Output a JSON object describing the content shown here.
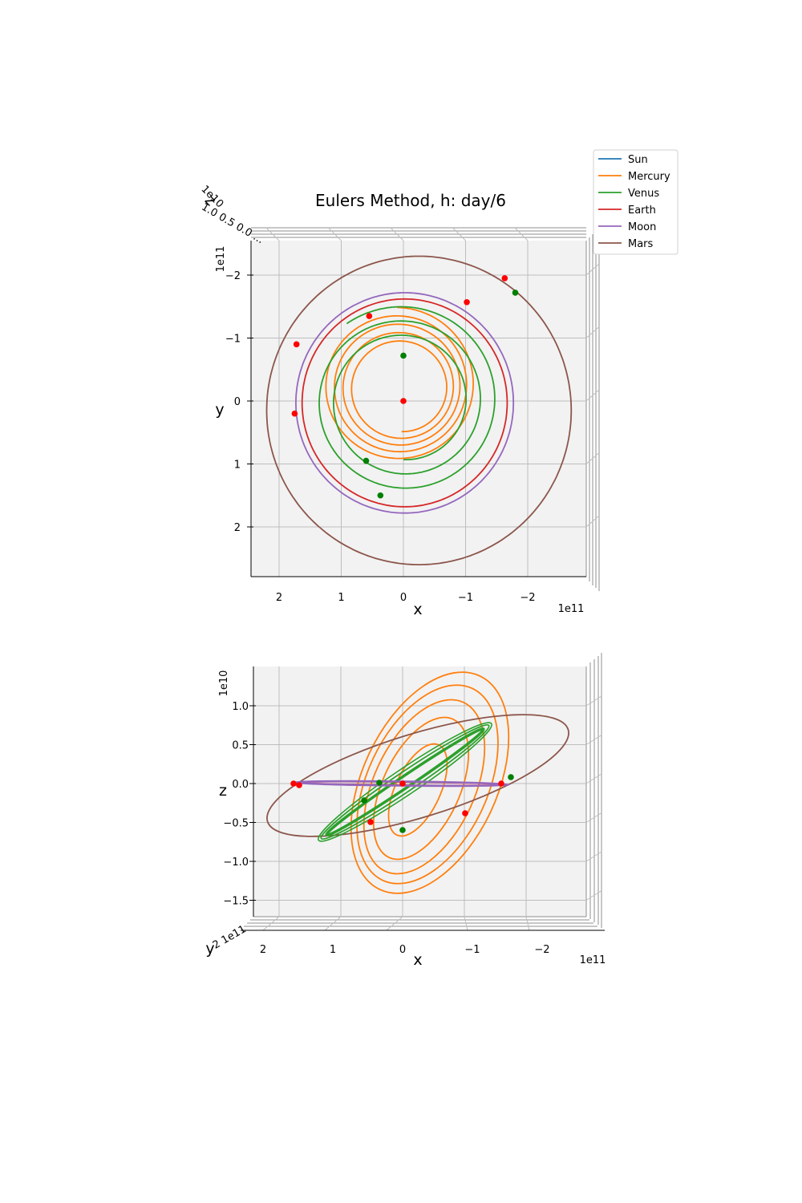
{
  "figure": {
    "title": "Eulers Method, h: day/6"
  },
  "legend": [
    {
      "name": "Sun",
      "color": "#1f77b4"
    },
    {
      "name": "Mercury",
      "color": "#ff7f0e"
    },
    {
      "name": "Venus",
      "color": "#2ca02c"
    },
    {
      "name": "Earth",
      "color": "#d62728"
    },
    {
      "name": "Moon",
      "color": "#9467bd"
    },
    {
      "name": "Mars",
      "color": "#8c564b"
    }
  ],
  "chart_data": [
    {
      "type": "line",
      "view": "top (x-y projection, 3D axes)",
      "title": "Eulers Method, h: day/6",
      "xlabel": "x",
      "ylabel": "y",
      "zlabel": "z",
      "x_offset_text": "1e11",
      "y_offset_text": "1e11",
      "z_offset_text": "1e10",
      "x_ticks": [
        "2",
        "1",
        "0",
        "−1",
        "−2"
      ],
      "y_ticks": [
        "−2",
        "−1",
        "0",
        "1",
        "2"
      ],
      "x_axis_inverted": true,
      "xlim": [
        -290000000000.0,
        250000000000.0
      ],
      "ylim": [
        -290000000000.0,
        280000000000.0
      ],
      "grid": true,
      "legend_position": "top-right",
      "series": [
        {
          "name": "Sun",
          "color": "#1f77b4",
          "points": [
            [
              0,
              0
            ]
          ]
        },
        {
          "name": "Mercury",
          "color": "#ff7f0e",
          "spiral": {
            "cx": [
              3000000000.0,
              10000000000.0
            ],
            "cy": [
              -20000000000.0,
              -26000000000.0
            ],
            "r": [
              70000000000.0,
              125000000000.0
            ],
            "turns": 4.5
          }
        },
        {
          "name": "Venus",
          "color": "#2ca02c",
          "spiral": {
            "cx": [
              0,
              0
            ],
            "cy": [
              0,
              0
            ],
            "r": [
              95000000000.0,
              155000000000.0
            ],
            "turns": 2.6
          }
        },
        {
          "name": "Earth",
          "color": "#d62728",
          "circle": {
            "cx": -2000000000.0,
            "cy": 3000000000.0,
            "r": 165000000000.0
          }
        },
        {
          "name": "Moon",
          "color": "#9467bd",
          "circle": {
            "cx": -2000000000.0,
            "cy": 3000000000.0,
            "r": 175000000000.0
          }
        },
        {
          "name": "Mars",
          "color": "#8c564b",
          "circle": {
            "cx": -25000000000.0,
            "cy": 15000000000.0,
            "r": 245000000000.0
          }
        }
      ],
      "start_markers_green": [
        [
          0,
          -72000000000.0
        ],
        [
          -180000000000.0,
          -172000000000.0
        ],
        [
          60000000000.0,
          95000000000.0
        ],
        [
          37000000000.0,
          150000000000.0
        ]
      ],
      "end_markers_red": [
        [
          0,
          0
        ],
        [
          -102000000000.0,
          -157000000000.0
        ],
        [
          55000000000.0,
          -135000000000.0
        ],
        [
          172000000000.0,
          -90000000000.0
        ],
        [
          175000000000.0,
          20000000000.0
        ],
        [
          -163000000000.0,
          -195000000000.0
        ]
      ]
    },
    {
      "type": "line",
      "view": "side (x-z projection, 3D axes)",
      "xlabel": "x",
      "ylabel": "y",
      "zlabel": "z",
      "x_offset_text": "1e11",
      "z_offset_text": "1e10",
      "x_ticks": [
        "2",
        "1",
        "0",
        "−1",
        "−2"
      ],
      "z_ticks": [
        "1.0",
        "0.5",
        "0.0",
        "−0.5",
        "−1.0",
        "−1.5"
      ],
      "x_axis_inverted": true,
      "zlim": [
        -17500000000.0,
        15000000000.0
      ],
      "grid": true,
      "series": [
        {
          "name": "Mercury",
          "color": "#ff7f0e"
        },
        {
          "name": "Venus",
          "color": "#2ca02c"
        },
        {
          "name": "Earth",
          "color": "#d62728"
        },
        {
          "name": "Moon",
          "color": "#9467bd"
        },
        {
          "name": "Mars",
          "color": "#8c564b"
        }
      ]
    }
  ]
}
